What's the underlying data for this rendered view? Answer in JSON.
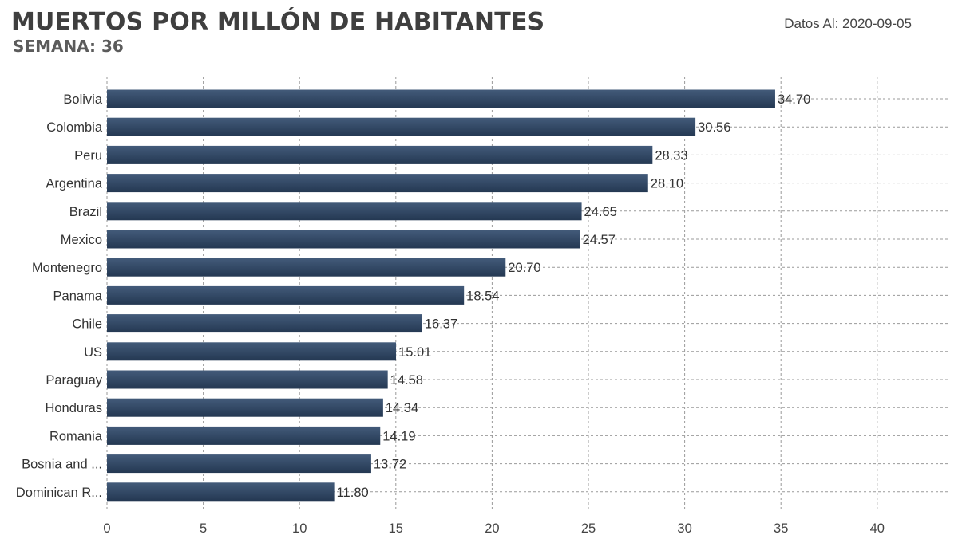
{
  "header": {
    "title": "MUERTOS POR MILLÓN DE HABITANTES",
    "subtitle": "SEMANA: 36",
    "date_note": "Datos Al: 2020-09-05"
  },
  "colors": {
    "bar_top": "#435b7a",
    "bar_bottom": "#243852",
    "grid": "#9a9a9a",
    "text": "#333333"
  },
  "chart_data": {
    "type": "bar",
    "orientation": "horizontal",
    "title": "MUERTOS POR MILLÓN DE HABITANTES",
    "subtitle": "SEMANA: 36",
    "xlabel": "",
    "ylabel": "",
    "categories": [
      "Bolivia",
      "Colombia",
      "Peru",
      "Argentina",
      "Brazil",
      "Mexico",
      "Montenegro",
      "Panama",
      "Chile",
      "US",
      "Paraguay",
      "Honduras",
      "Romania",
      "Bosnia and ...",
      "Dominican R..."
    ],
    "values": [
      34.7,
      30.56,
      28.33,
      28.1,
      24.65,
      24.57,
      20.7,
      18.54,
      16.37,
      15.01,
      14.58,
      14.34,
      14.19,
      13.72,
      11.8
    ],
    "value_labels": [
      "34.70",
      "30.56",
      "28.33",
      "28.10",
      "24.65",
      "24.57",
      "20.70",
      "18.54",
      "16.37",
      "15.01",
      "14.58",
      "14.34",
      "14.19",
      "13.72",
      "11.80"
    ],
    "xlim": [
      0,
      43
    ],
    "xticks": [
      0,
      5,
      10,
      15,
      20,
      25,
      30,
      35,
      40
    ],
    "grid": true,
    "grid_style": "dashed",
    "legend": "none"
  }
}
